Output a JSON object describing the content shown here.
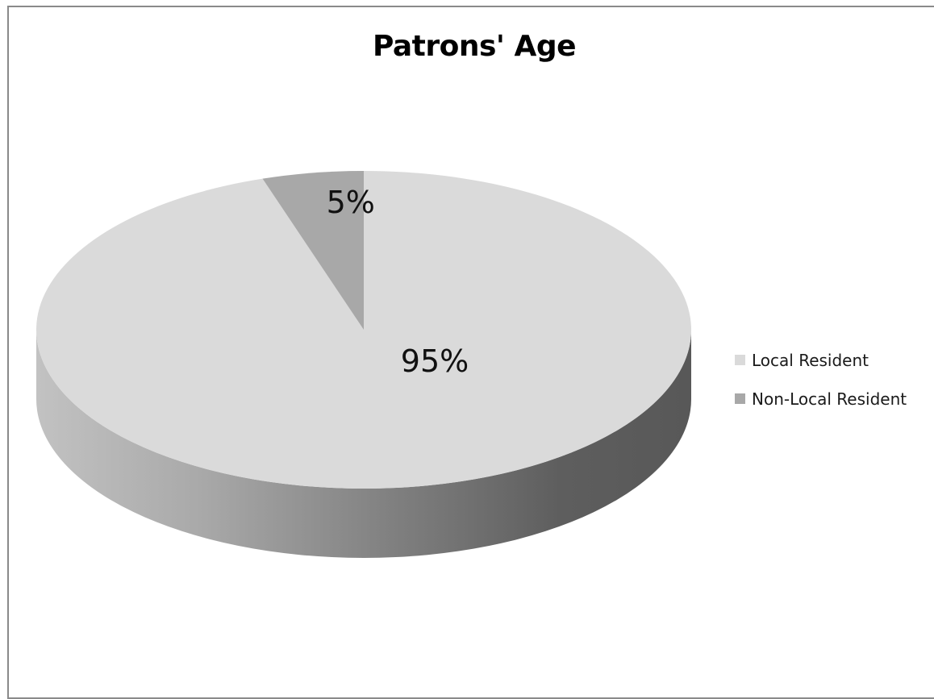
{
  "chart_data": {
    "type": "pie",
    "title": "Patrons' Age",
    "categories": [
      "Local Resident",
      "Non-Local Resident"
    ],
    "values": [
      95,
      5
    ],
    "data_labels": [
      "95%",
      "5%"
    ],
    "legend_position": "right",
    "colors": {
      "Local Resident": "#dadada",
      "Non-Local Resident": "#a8a8a8"
    },
    "style": "3d"
  }
}
